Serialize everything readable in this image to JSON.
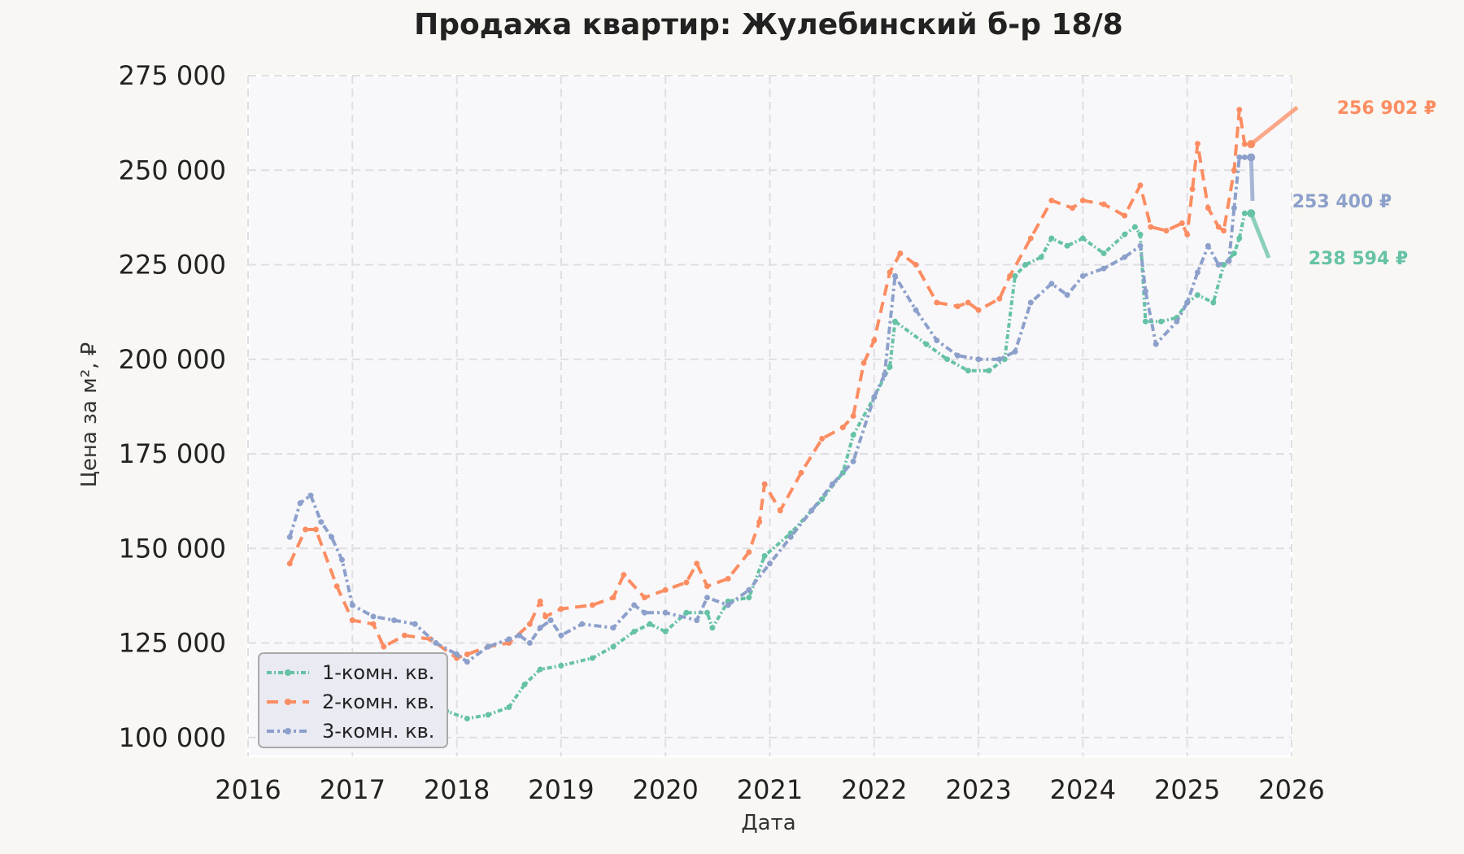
{
  "chart_data": {
    "type": "line",
    "title": "Продажа квартир: Жулебинский б-р 18/8",
    "xlabel": "Дата",
    "ylabel": "Цена за м², ₽",
    "xlim": [
      2016,
      2026
    ],
    "ylim": [
      95000,
      275000
    ],
    "x_ticks": [
      2016,
      2017,
      2018,
      2019,
      2020,
      2021,
      2022,
      2023,
      2024,
      2025,
      2026
    ],
    "x_tick_labels": [
      "2016",
      "2017",
      "2018",
      "2019",
      "2020",
      "2021",
      "2022",
      "2023",
      "2024",
      "2025",
      "2026"
    ],
    "y_ticks": [
      100000,
      125000,
      150000,
      175000,
      200000,
      225000,
      250000,
      275000
    ],
    "y_tick_labels": [
      "100 000",
      "125 000",
      "150 000",
      "175 000",
      "200 000",
      "225 000",
      "250 000",
      "275 000"
    ],
    "grid": true,
    "legend_position": "bottom-left",
    "series": [
      {
        "name": "1-комн. кв.",
        "color": "#66c2a5",
        "x": [
          2016.4,
          2016.6,
          2016.8,
          2017.0,
          2017.3,
          2017.6,
          2017.9,
          2018.1,
          2018.3,
          2018.5,
          2018.65,
          2018.8,
          2019.0,
          2019.3,
          2019.5,
          2019.7,
          2019.85,
          2020.0,
          2020.2,
          2020.4,
          2020.45,
          2020.6,
          2020.8,
          2020.95,
          2021.2,
          2021.5,
          2021.7,
          2021.8,
          2022.0,
          2022.15,
          2022.2,
          2022.5,
          2022.7,
          2022.9,
          2023.1,
          2023.25,
          2023.35,
          2023.45,
          2023.6,
          2023.7,
          2023.85,
          2024.0,
          2024.2,
          2024.4,
          2024.5,
          2024.55,
          2024.6,
          2024.75,
          2024.9,
          2025.0,
          2025.1,
          2025.25,
          2025.35,
          2025.45,
          2025.5,
          2025.55
        ],
        "values": [
          118000,
          117000,
          115000,
          113000,
          111000,
          110000,
          107000,
          105000,
          106000,
          108000,
          114000,
          118000,
          119000,
          121000,
          124000,
          128000,
          130000,
          128000,
          133000,
          133000,
          129000,
          136000,
          137000,
          148000,
          154000,
          163000,
          170000,
          180000,
          190000,
          198000,
          210000,
          204000,
          200000,
          197000,
          197000,
          200000,
          222000,
          225000,
          227000,
          232000,
          230000,
          232000,
          228000,
          233000,
          235000,
          233000,
          210000,
          210000,
          211000,
          215000,
          217000,
          215000,
          225000,
          228000,
          232000,
          238594
        ]
      },
      {
        "name": "2-комн. кв.",
        "color": "#fc8d62",
        "x": [
          2016.4,
          2016.55,
          2016.65,
          2016.85,
          2017.0,
          2017.2,
          2017.3,
          2017.5,
          2017.75,
          2018.0,
          2018.1,
          2018.3,
          2018.5,
          2018.7,
          2018.8,
          2018.85,
          2019.0,
          2019.3,
          2019.5,
          2019.6,
          2019.8,
          2020.0,
          2020.2,
          2020.3,
          2020.4,
          2020.6,
          2020.8,
          2020.9,
          2020.95,
          2021.1,
          2021.3,
          2021.5,
          2021.7,
          2021.8,
          2021.9,
          2022.0,
          2022.15,
          2022.25,
          2022.4,
          2022.6,
          2022.8,
          2022.9,
          2023.0,
          2023.2,
          2023.3,
          2023.5,
          2023.7,
          2023.9,
          2024.0,
          2024.2,
          2024.4,
          2024.55,
          2024.65,
          2024.8,
          2024.95,
          2025.0,
          2025.05,
          2025.1,
          2025.2,
          2025.3,
          2025.35,
          2025.45,
          2025.5,
          2025.55
        ],
        "values": [
          146000,
          155000,
          155000,
          140000,
          131000,
          130000,
          124000,
          127000,
          126000,
          121000,
          122000,
          124000,
          125000,
          130000,
          136000,
          132000,
          134000,
          135000,
          137000,
          143000,
          137000,
          139000,
          141000,
          146000,
          140000,
          142000,
          149000,
          157000,
          167000,
          160000,
          170000,
          179000,
          182000,
          185000,
          199000,
          205000,
          223000,
          228000,
          225000,
          215000,
          214000,
          215000,
          213000,
          216000,
          222000,
          232000,
          242000,
          240000,
          242000,
          241000,
          238000,
          246000,
          235000,
          234000,
          236000,
          233000,
          245000,
          257000,
          240000,
          235000,
          234000,
          250000,
          266000,
          256902
        ]
      },
      {
        "name": "3-комн. кв.",
        "color": "#8da0cb",
        "x": [
          2016.4,
          2016.5,
          2016.6,
          2016.7,
          2016.8,
          2016.9,
          2017.0,
          2017.2,
          2017.4,
          2017.6,
          2017.8,
          2018.0,
          2018.1,
          2018.3,
          2018.5,
          2018.6,
          2018.7,
          2018.8,
          2018.9,
          2019.0,
          2019.2,
          2019.5,
          2019.7,
          2019.8,
          2020.0,
          2020.3,
          2020.4,
          2020.6,
          2020.8,
          2021.0,
          2021.2,
          2021.4,
          2021.6,
          2021.8,
          2022.0,
          2022.1,
          2022.2,
          2022.4,
          2022.6,
          2022.8,
          2023.0,
          2023.2,
          2023.35,
          2023.5,
          2023.7,
          2023.85,
          2024.0,
          2024.2,
          2024.4,
          2024.55,
          2024.6,
          2024.7,
          2024.9,
          2025.0,
          2025.1,
          2025.2,
          2025.3,
          2025.4,
          2025.45,
          2025.5,
          2025.55
        ],
        "values": [
          153000,
          162000,
          164000,
          157000,
          153000,
          147000,
          135000,
          132000,
          131000,
          130000,
          125000,
          122000,
          120000,
          124000,
          126000,
          127000,
          125000,
          129000,
          131000,
          127000,
          130000,
          129000,
          135000,
          133000,
          133000,
          131000,
          137000,
          135000,
          139000,
          146000,
          153000,
          160000,
          167000,
          173000,
          190000,
          196000,
          222000,
          213000,
          205000,
          201000,
          200000,
          200000,
          202000,
          215000,
          220000,
          217000,
          222000,
          224000,
          227000,
          230000,
          218000,
          204000,
          210000,
          215000,
          223000,
          230000,
          225000,
          226000,
          240000,
          253400,
          253400
        ]
      }
    ],
    "annotations": [
      {
        "series": "2-комн. кв.",
        "text": "256 902 ₽",
        "x": 2025.55,
        "value": 256902
      },
      {
        "series": "3-комн. кв.",
        "text": "253 400 ₽",
        "x": 2025.55,
        "value": 253400
      },
      {
        "series": "1-комн. кв.",
        "text": "238 594 ₽",
        "x": 2025.55,
        "value": 238594
      }
    ]
  }
}
